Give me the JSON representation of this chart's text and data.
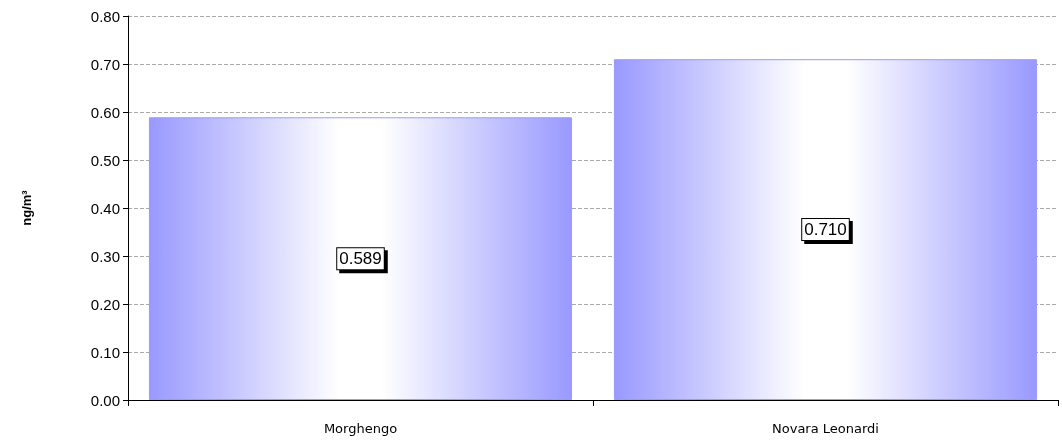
{
  "chart_data": {
    "type": "bar",
    "ylabel": "ng/m³",
    "categories": [
      "Morghengo",
      "Novara Leonardi"
    ],
    "values": [
      0.589,
      0.71
    ],
    "value_labels": [
      "0.589",
      "0.710"
    ],
    "color": "#9999ff",
    "ylim": [
      0,
      0.8
    ],
    "yticks": [
      {
        "value": 0,
        "label": "0.00"
      },
      {
        "value": 0.1,
        "label": "0.10"
      },
      {
        "value": 0.2,
        "label": "0.20"
      },
      {
        "value": 0.3,
        "label": "0.30"
      },
      {
        "value": 0.4,
        "label": "0.40"
      },
      {
        "value": 0.5,
        "label": "0.50"
      },
      {
        "value": 0.6,
        "label": "0.60"
      },
      {
        "value": 0.7,
        "label": "0.70"
      },
      {
        "value": 0.8,
        "label": "0.80"
      }
    ],
    "grid": "y"
  }
}
